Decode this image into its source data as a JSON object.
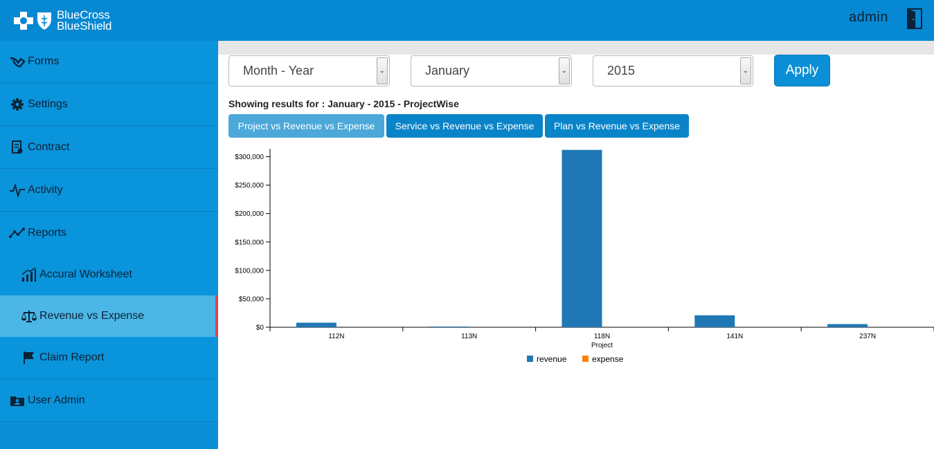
{
  "brand": {
    "line1": "BlueCross",
    "line2": "BlueShield"
  },
  "header": {
    "user": "admin"
  },
  "sidebar": {
    "items": [
      {
        "label": "Forms",
        "icon": "forms-icon"
      },
      {
        "label": "Settings",
        "icon": "gear-icon"
      },
      {
        "label": "Contract",
        "icon": "document-icon"
      },
      {
        "label": "Activity",
        "icon": "pulse-icon"
      },
      {
        "label": "Reports",
        "icon": "line-chart-icon"
      },
      {
        "label": "Accural Worksheet",
        "icon": "bar-chart-icon"
      },
      {
        "label": "Revenue vs Expense",
        "icon": "scale-icon"
      },
      {
        "label": "Claim Report",
        "icon": "flag-icon"
      },
      {
        "label": "User Admin",
        "icon": "user-folder-icon"
      }
    ],
    "active": "Revenue vs Expense"
  },
  "filters": {
    "period_type": "Month - Year",
    "month": "January",
    "year": "2015",
    "apply_label": "Apply"
  },
  "results_text": "Showing results for : January - 2015 - ProjectWise",
  "tabs": [
    {
      "label": "Project vs Revenue vs Expense",
      "active": true
    },
    {
      "label": "Service vs Revenue vs Expense",
      "active": false
    },
    {
      "label": "Plan vs Revenue vs Expense",
      "active": false
    }
  ],
  "colors": {
    "revenue": "#1f77b4",
    "expense": "#ff7f0e",
    "accent": "#0b8fd6",
    "active_marker": "#d8454a"
  },
  "chart_data": {
    "type": "bar",
    "xlabel": "Project",
    "ylabel": "",
    "categories": [
      "112N",
      "113N",
      "118N",
      "141N",
      "237N"
    ],
    "series": [
      {
        "name": "revenue",
        "values": [
          8000,
          500,
          312000,
          21000,
          5500
        ]
      },
      {
        "name": "expense",
        "values": [
          0,
          0,
          0,
          0,
          0
        ]
      }
    ],
    "ylim": [
      0,
      300000
    ],
    "yticks": [
      "$0",
      "$50,000",
      "$100,000",
      "$150,000",
      "$200,000",
      "$250,000",
      "$300,000"
    ],
    "legend": "bottom-center"
  }
}
